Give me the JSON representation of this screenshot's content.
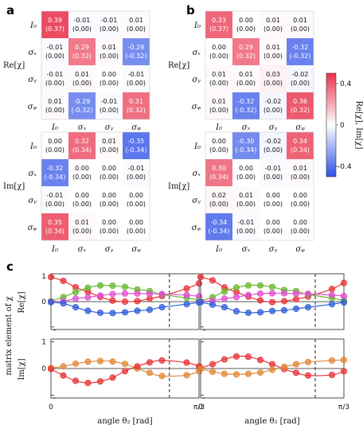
{
  "panel_labels": {
    "a": "a",
    "b": "b",
    "c": "c"
  },
  "colorbar": {
    "label": "Re[χ], Im[χ]",
    "ticks": [
      "0.4",
      "0",
      "-0.4"
    ],
    "range": [
      -0.5,
      0.5
    ],
    "colors": {
      "negative": "#2e4fe6",
      "zero": "#ffffff",
      "positive": "#e8304a"
    }
  },
  "matrix_axis": {
    "row_labels": [
      "I₀",
      "σₓ",
      "σᵧ",
      "σᵩ"
    ],
    "col_labels": [
      "I₀",
      "σₓ",
      "σᵧ",
      "σᵩ"
    ],
    "re_label": "Re[χ]",
    "im_label": "Im[χ]"
  },
  "chart_data": [
    {
      "type": "heatmap",
      "panel": "a",
      "part": "Re",
      "values": [
        [
          0.39,
          -0.01,
          -0.01,
          0.01
        ],
        [
          -0.01,
          0.29,
          0.01,
          -0.29
        ],
        [
          -0.01,
          0.01,
          0.0,
          -0.01
        ],
        [
          0.01,
          -0.29,
          -0.01,
          0.31
        ]
      ],
      "ideal": [
        [
          "(0.37)",
          "(0.00)",
          "(0.00)",
          "(0.00)"
        ],
        [
          "(0.00)",
          "(0.32)",
          "(0.00)",
          "(-0.32)"
        ],
        [
          "(0.00)",
          "(0.00)",
          "(0.00)",
          "(0.00)"
        ],
        [
          "(0.00)",
          "(-0.32)",
          "(0.00)",
          "(0.32)"
        ]
      ],
      "labels": [
        [
          "0.39",
          "-0.01",
          "-0.01",
          "0.01"
        ],
        [
          "-0.01",
          "0.29",
          "0.01",
          "-0.29"
        ],
        [
          "-0.01",
          "0.01",
          "0.00",
          "-0.01"
        ],
        [
          "0.01",
          "-0.29",
          "-0.01",
          "0.31"
        ]
      ]
    },
    {
      "type": "heatmap",
      "panel": "a",
      "part": "Im",
      "values": [
        [
          0.0,
          0.32,
          0.01,
          -0.35
        ],
        [
          -0.32,
          0.0,
          0.0,
          -0.01
        ],
        [
          -0.01,
          0.0,
          0.0,
          0.0
        ],
        [
          0.35,
          0.01,
          0.0,
          0.0
        ]
      ],
      "ideal": [
        [
          "(0.00)",
          "(0.34)",
          "(0.00)",
          "(-0.34)"
        ],
        [
          "(-0.34)",
          "(0.00)",
          "(0.00)",
          "(0.00)"
        ],
        [
          "(0.00)",
          "(0.00)",
          "(0.00)",
          "(0.00)"
        ],
        [
          "(0.34)",
          "(0.00)",
          "(0.00)",
          "(0.00)"
        ]
      ],
      "labels": [
        [
          "0.00",
          "0.32",
          "0.01",
          "-0.35"
        ],
        [
          "-0.32",
          "0.00",
          "0.00",
          "-0.01"
        ],
        [
          "-0.01",
          "0.00",
          "0.00",
          "0.00"
        ],
        [
          "0.35",
          "0.01",
          "0.00",
          "0.00"
        ]
      ]
    },
    {
      "type": "heatmap",
      "panel": "b",
      "part": "Re",
      "values": [
        [
          0.33,
          0.0,
          0.01,
          0.01
        ],
        [
          0.0,
          0.29,
          0.01,
          -0.32
        ],
        [
          0.01,
          0.01,
          0.03,
          -0.02
        ],
        [
          0.01,
          -0.32,
          -0.02,
          0.36
        ]
      ],
      "ideal": [
        [
          "(0.37)",
          "(0.00)",
          "(0.00)",
          "(0.00)"
        ],
        [
          "(0.00)",
          "(0.32)",
          "(0.00)",
          "(-0.32)"
        ],
        [
          "(0.00)",
          "(0.00)",
          "(0.00)",
          "(0.00)"
        ],
        [
          "(0.00)",
          "(-0.32)",
          "(0.00)",
          "(0.32)"
        ]
      ],
      "labels": [
        [
          "0.33",
          "0.00",
          "0.01",
          "0.01"
        ],
        [
          "0.00",
          "0.29",
          "0.01",
          "-0.32"
        ],
        [
          "0.01",
          "0.01",
          "0.03",
          "-0.02"
        ],
        [
          "0.01",
          "-0.32",
          "-0.02",
          "0.36"
        ]
      ]
    },
    {
      "type": "heatmap",
      "panel": "b",
      "part": "Im",
      "values": [
        [
          0.0,
          -0.3,
          -0.02,
          0.34
        ],
        [
          0.3,
          0.0,
          -0.01,
          0.01
        ],
        [
          0.02,
          0.01,
          0.0,
          0.0
        ],
        [
          -0.34,
          -0.01,
          0.0,
          0.0
        ]
      ],
      "ideal": [
        [
          "(0.00)",
          "(-0.34)",
          "(0.00)",
          "(0.34)"
        ],
        [
          "(0.34)",
          "(0.00)",
          "(0.00)",
          "(0.00)"
        ],
        [
          "(0.00)",
          "(0.00)",
          "(0.00)",
          "(0.00)"
        ],
        [
          "(-0.34)",
          "(0.00)",
          "(0.00)",
          "(0.00)"
        ]
      ],
      "labels": [
        [
          "0.00",
          "-0.30",
          "-0.02",
          "0.34"
        ],
        [
          "0.30",
          "0.00",
          "-0.01",
          "0.01"
        ],
        [
          "0.02",
          "0.01",
          "0.00",
          "0.00"
        ],
        [
          "-0.34",
          "-0.01",
          "0.00",
          "0.00"
        ]
      ]
    }
  ],
  "line_panels": {
    "ylabel": "matrix element of χ",
    "xlabel": "angle θ₂ [rad]",
    "xticks": [
      "0",
      "π/3"
    ],
    "xrange": [
      0,
      1.0472
    ],
    "dashed_x": 0.8378,
    "re_yticks": [
      "1",
      "0"
    ],
    "im_yticks": [
      "1",
      "0"
    ],
    "tick_minus": "-",
    "yrange": [
      -1.1,
      1.1
    ],
    "series_colors": {
      "red": "#e8353a",
      "green": "#6ab830",
      "pink": "#e050d0",
      "blue": "#3060d8",
      "orange": "#e08a3a"
    },
    "left": {
      "re": [
        {
          "color": "red",
          "points": [
            [
              0,
              0.97
            ],
            [
              0.0873,
              0.82
            ],
            [
              0.1745,
              0.57
            ],
            [
              0.2618,
              0.38
            ],
            [
              0.349,
              0.19
            ],
            [
              0.4363,
              0.04
            ],
            [
              0.5236,
              0.0
            ],
            [
              0.6109,
              0.02
            ],
            [
              0.6981,
              0.12
            ],
            [
              0.7854,
              0.22
            ],
            [
              0.9599,
              0.52
            ],
            [
              1.0472,
              0.72
            ]
          ]
        },
        {
          "color": "green",
          "points": [
            [
              0,
              0.02
            ],
            [
              0.0873,
              0.18
            ],
            [
              0.1745,
              0.38
            ],
            [
              0.2618,
              0.55
            ],
            [
              0.349,
              0.64
            ],
            [
              0.4363,
              0.63
            ],
            [
              0.5236,
              0.58
            ],
            [
              0.6109,
              0.48
            ],
            [
              0.6981,
              0.42
            ],
            [
              0.7854,
              0.28
            ],
            [
              0.9599,
              0.15
            ],
            [
              1.0472,
              0.06
            ]
          ]
        },
        {
          "color": "pink",
          "points": [
            [
              0,
              0.0
            ],
            [
              0.0873,
              0.02
            ],
            [
              0.1745,
              0.12
            ],
            [
              0.2618,
              0.17
            ],
            [
              0.349,
              0.24
            ],
            [
              0.4363,
              0.3
            ],
            [
              0.5236,
              0.32
            ],
            [
              0.6109,
              0.32
            ],
            [
              0.6981,
              0.31
            ],
            [
              0.7854,
              0.3
            ],
            [
              0.9599,
              0.26
            ],
            [
              1.0472,
              0.21
            ]
          ]
        },
        {
          "color": "blue",
          "points": [
            [
              0,
              -0.02
            ],
            [
              0.0873,
              -0.07
            ],
            [
              0.1745,
              -0.22
            ],
            [
              0.2618,
              -0.36
            ],
            [
              0.349,
              -0.44
            ],
            [
              0.4363,
              -0.45
            ],
            [
              0.5236,
              -0.42
            ],
            [
              0.6109,
              -0.36
            ],
            [
              0.6981,
              -0.32
            ],
            [
              0.7854,
              -0.22
            ],
            [
              0.9599,
              -0.1
            ],
            [
              1.0472,
              -0.03
            ]
          ]
        }
      ],
      "im": [
        {
          "color": "orange",
          "points": [
            [
              0,
              0.02
            ],
            [
              0.0873,
              0.08
            ],
            [
              0.1745,
              0.18
            ],
            [
              0.2618,
              0.25
            ],
            [
              0.349,
              0.28
            ],
            [
              0.4363,
              0.26
            ],
            [
              0.5236,
              0.17
            ],
            [
              0.6109,
              0.0
            ],
            [
              0.6981,
              -0.16
            ],
            [
              0.7854,
              -0.28
            ],
            [
              0.9599,
              -0.25
            ],
            [
              1.0472,
              -0.1
            ]
          ]
        },
        {
          "color": "red",
          "points": [
            [
              0,
              -0.02
            ],
            [
              0.0873,
              -0.26
            ],
            [
              0.1745,
              -0.46
            ],
            [
              0.2618,
              -0.54
            ],
            [
              0.349,
              -0.48
            ],
            [
              0.4363,
              -0.34
            ],
            [
              0.5236,
              -0.1
            ],
            [
              0.6109,
              0.08
            ],
            [
              0.6981,
              0.23
            ],
            [
              0.7854,
              0.3
            ],
            [
              0.9599,
              0.22
            ],
            [
              1.0472,
              0.08
            ]
          ]
        }
      ]
    },
    "right": {
      "re": [
        {
          "color": "red",
          "points": [
            [
              0,
              0.97
            ],
            [
              0.0873,
              0.84
            ],
            [
              0.1745,
              0.56
            ],
            [
              0.2618,
              0.38
            ],
            [
              0.349,
              0.2
            ],
            [
              0.4363,
              0.05
            ],
            [
              0.5236,
              -0.02
            ],
            [
              0.6109,
              0.02
            ],
            [
              0.6981,
              0.1
            ],
            [
              0.7854,
              0.2
            ],
            [
              0.9599,
              0.5
            ],
            [
              1.0472,
              0.74
            ]
          ]
        },
        {
          "color": "green",
          "points": [
            [
              0,
              0.02
            ],
            [
              0.0873,
              0.18
            ],
            [
              0.1745,
              0.4
            ],
            [
              0.2618,
              0.56
            ],
            [
              0.349,
              0.64
            ],
            [
              0.4363,
              0.64
            ],
            [
              0.5236,
              0.58
            ],
            [
              0.6109,
              0.46
            ],
            [
              0.6981,
              0.42
            ],
            [
              0.7854,
              0.28
            ],
            [
              0.9599,
              0.14
            ],
            [
              1.0472,
              0.04
            ]
          ]
        },
        {
          "color": "pink",
          "points": [
            [
              0,
              0.0
            ],
            [
              0.0873,
              0.04
            ],
            [
              0.1745,
              0.12
            ],
            [
              0.2618,
              0.18
            ],
            [
              0.349,
              0.26
            ],
            [
              0.4363,
              0.32
            ],
            [
              0.5236,
              0.33
            ],
            [
              0.6109,
              0.33
            ],
            [
              0.6981,
              0.32
            ],
            [
              0.7854,
              0.31
            ],
            [
              0.9599,
              0.26
            ],
            [
              1.0472,
              0.22
            ]
          ]
        },
        {
          "color": "blue",
          "points": [
            [
              0,
              -0.02
            ],
            [
              0.0873,
              -0.12
            ],
            [
              0.1745,
              -0.22
            ],
            [
              0.2618,
              -0.38
            ],
            [
              0.349,
              -0.44
            ],
            [
              0.4363,
              -0.42
            ],
            [
              0.5236,
              -0.37
            ],
            [
              0.6109,
              -0.34
            ],
            [
              0.6981,
              -0.28
            ],
            [
              0.7854,
              -0.22
            ],
            [
              0.9599,
              -0.1
            ],
            [
              1.0472,
              -0.03
            ]
          ]
        }
      ],
      "im": [
        {
          "color": "red",
          "points": [
            [
              0,
              0.02
            ],
            [
              0.0873,
              0.16
            ],
            [
              0.1745,
              0.34
            ],
            [
              0.2618,
              0.45
            ],
            [
              0.349,
              0.44
            ],
            [
              0.4363,
              0.32
            ],
            [
              0.5236,
              0.16
            ],
            [
              0.6109,
              -0.02
            ],
            [
              0.6981,
              -0.16
            ],
            [
              0.7854,
              -0.26
            ],
            [
              0.9599,
              -0.24
            ],
            [
              1.0472,
              -0.1
            ]
          ]
        },
        {
          "color": "orange",
          "points": [
            [
              0,
              -0.02
            ],
            [
              0.0873,
              -0.12
            ],
            [
              0.1745,
              -0.2
            ],
            [
              0.2618,
              -0.22
            ],
            [
              0.349,
              -0.2
            ],
            [
              0.4363,
              -0.15
            ],
            [
              0.5236,
              -0.05
            ],
            [
              0.6109,
              0.06
            ],
            [
              0.6981,
              0.16
            ],
            [
              0.7854,
              0.24
            ],
            [
              0.9599,
              0.3
            ],
            [
              1.0472,
              0.32
            ]
          ]
        }
      ]
    }
  }
}
